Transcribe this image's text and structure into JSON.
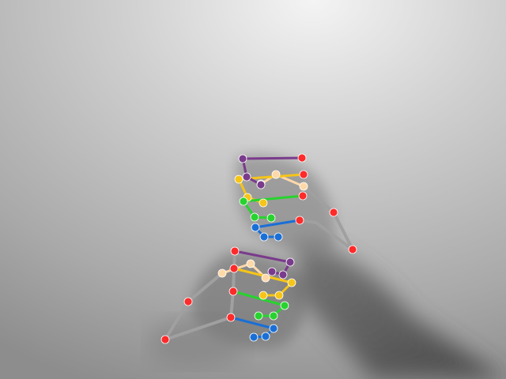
{
  "image": {
    "description_free": true
  },
  "colors": {
    "palm": "#a0a0a0",
    "thumb": "#ffd8a8",
    "index": "#f5c518",
    "middle": "#27d32e",
    "ring": "#1a6fd6",
    "pinky": "#7a3b8c",
    "wrist": "#ff2a2a"
  }
}
